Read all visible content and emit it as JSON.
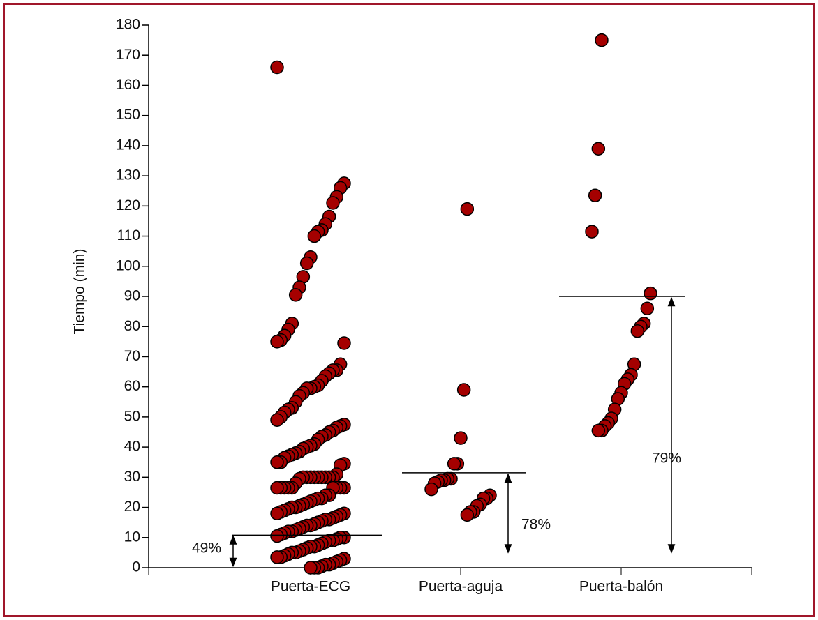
{
  "chart_data": {
    "type": "strip",
    "y_label": "Tiempo (min)",
    "categories": [
      "Puerta-ECG",
      "Puerta-aguja",
      "Puerta-balón"
    ],
    "color": "#a50000",
    "values": [
      [
        166,
        127.5,
        126,
        123,
        121,
        116.5,
        114,
        112,
        111.5,
        110,
        103,
        101,
        96.5,
        93,
        90.5,
        81,
        79,
        77,
        75.5,
        75,
        74.5,
        67.5,
        65.5,
        65.5,
        64.5,
        63.5,
        62,
        60.5,
        60,
        59.5,
        59.5,
        58,
        57,
        55,
        53,
        52.5,
        51.5,
        50,
        49,
        47.5,
        47,
        46.5,
        45.5,
        45,
        44,
        43.5,
        42.5,
        41,
        40.5,
        40,
        39.5,
        38.5,
        38,
        37.5,
        37,
        36.5,
        35,
        35,
        34.5,
        34,
        31,
        30,
        30,
        30,
        30,
        30,
        30,
        30,
        30,
        30,
        29.5,
        28,
        26.5,
        26.5,
        26.5,
        26.5,
        26.5,
        26.5,
        26.5,
        26.5,
        26.5,
        24,
        24,
        23,
        23,
        22.5,
        22,
        21.5,
        21,
        20.5,
        20,
        20,
        19.5,
        19,
        18.5,
        18,
        18,
        17.5,
        17,
        16.5,
        16,
        16,
        15.5,
        15,
        14.5,
        14,
        14,
        13.5,
        13,
        12.5,
        12,
        12,
        11.5,
        11,
        10.5,
        10,
        10,
        9.5,
        9,
        9,
        8.5,
        8,
        7.5,
        7,
        7,
        6.5,
        6,
        5.5,
        5,
        5,
        4.5,
        4,
        3.5,
        3.5,
        3,
        2.5,
        2,
        1.5,
        1,
        1,
        0.5,
        0,
        0,
        0
      ],
      [
        119,
        59,
        43,
        34.5,
        34.5,
        29.5,
        29.5,
        29,
        29,
        28.5,
        28,
        26,
        24,
        23,
        23,
        21,
        20.5,
        18.5,
        18.5,
        17.5
      ],
      [
        175,
        139,
        123.5,
        111.5,
        91,
        86,
        81,
        80,
        78.5,
        67.5,
        64,
        62.5,
        61,
        58,
        56,
        52.5,
        49.5,
        48,
        47,
        45.5,
        45.5
      ]
    ],
    "reference_lines": [
      10.8,
      31.5,
      90
    ],
    "annotations": [
      {
        "text": "49%",
        "from": 0.5,
        "to": 10.5
      },
      {
        "text": "78%",
        "from": 5,
        "to": 31
      },
      {
        "text": "79%",
        "from": 5,
        "to": 89.5
      }
    ],
    "ylim": [
      0,
      180
    ],
    "yticks": [
      0,
      10,
      20,
      30,
      40,
      50,
      60,
      70,
      80,
      90,
      100,
      110,
      120,
      130,
      140,
      150,
      160,
      170,
      180
    ]
  }
}
